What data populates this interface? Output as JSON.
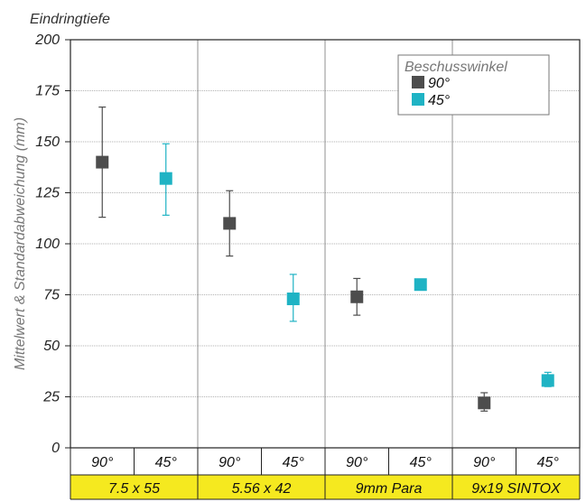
{
  "chart_data": {
    "type": "scatter",
    "title": "Eindringtiefe",
    "ylabel": "Mittelwert & Standardabweichung (mm)",
    "ylim": [
      0,
      200
    ],
    "yticks": [
      "0",
      "25",
      "50",
      "75",
      "100",
      "125",
      "150",
      "175",
      "200"
    ],
    "grid": true,
    "legend": {
      "title": "Beschusswinkel",
      "placement": "top-right",
      "entries": [
        {
          "name": "90°",
          "color": "#4d4d4d"
        },
        {
          "name": "45°",
          "color": "#1fb3c4"
        }
      ]
    },
    "categories": [
      "7.5 x 55",
      "5.56 x 42",
      "9mm Para",
      "9x19 SINTOX"
    ],
    "category_bg": "#f5e91f",
    "sub_labels": [
      "90°",
      "45°",
      "90°",
      "45°",
      "90°",
      "45°",
      "90°",
      "45°"
    ],
    "series": [
      {
        "name": "90°",
        "color": "#4d4d4d",
        "mean": [
          140,
          110,
          74,
          22
        ],
        "error_low": [
          113,
          94,
          65,
          18
        ],
        "error_high": [
          167,
          126,
          83,
          27
        ]
      },
      {
        "name": "45°",
        "color": "#1fb3c4",
        "mean": [
          132,
          73,
          80,
          33
        ],
        "error_low": [
          114,
          62,
          null,
          30
        ],
        "error_high": [
          149,
          85,
          null,
          37
        ]
      }
    ]
  }
}
